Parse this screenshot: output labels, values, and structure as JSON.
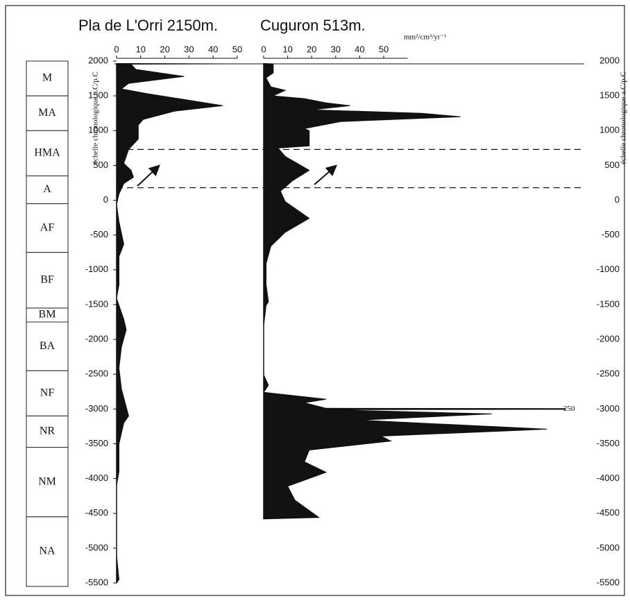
{
  "chart_data": {
    "type": "area-profile",
    "y_label": "échelle chronologique a.C/p.C",
    "unit": "mm²/cm³/yr⁻¹",
    "ylim": [
      2000,
      -5500
    ],
    "yticks": [
      2000,
      1500,
      1000,
      500,
      0,
      -500,
      -1000,
      -1500,
      -2000,
      -2500,
      -3000,
      -3500,
      -4000,
      -4500,
      -5000,
      -5500
    ],
    "dashed_lines": [
      730,
      180
    ],
    "periods": [
      {
        "label": "M",
        "start": 2000,
        "end": 1500
      },
      {
        "label": "MA",
        "start": 1500,
        "end": 1000
      },
      {
        "label": "HMA",
        "start": 1000,
        "end": 350
      },
      {
        "label": "A",
        "start": 350,
        "end": -50
      },
      {
        "label": "AF",
        "start": -50,
        "end": -750
      },
      {
        "label": "BF",
        "start": -750,
        "end": -1550
      },
      {
        "label": "BM",
        "start": -1550,
        "end": -1750
      },
      {
        "label": "BA",
        "start": -1750,
        "end": -2450
      },
      {
        "label": "NF",
        "start": -2450,
        "end": -3100
      },
      {
        "label": "NR",
        "start": -3100,
        "end": -3550
      },
      {
        "label": "NM",
        "start": -3550,
        "end": -4550
      },
      {
        "label": "NA",
        "start": -4550,
        "end": -5550
      }
    ],
    "series": [
      {
        "name": "Pla de L'Orri 2150m.",
        "color": "#111111",
        "xlim": [
          0,
          50
        ],
        "xticks": [
          0,
          10,
          20,
          30,
          40,
          50
        ],
        "y": [
          1965,
          1960,
          1955,
          1880,
          1780,
          1680,
          1600,
          1530,
          1360,
          1280,
          1160,
          1080,
          880,
          730,
          530,
          430,
          330,
          240,
          90,
          -60,
          -310,
          -630,
          -810,
          -1010,
          -1210,
          -1410,
          -1710,
          -1860,
          -2110,
          -2410,
          -2710,
          -3100,
          -3200,
          -3500,
          -3900,
          -4100,
          -4700,
          -5100,
          -5450,
          -5500
        ],
        "values": [
          0,
          46,
          6,
          8,
          28,
          5,
          2,
          13,
          44,
          24,
          11,
          9,
          9,
          5,
          3,
          6,
          7,
          3,
          1,
          0,
          1,
          3,
          1,
          1,
          1,
          0,
          3,
          4,
          2,
          1,
          2,
          5,
          3,
          1,
          1,
          0,
          0,
          0,
          1,
          0
        ]
      },
      {
        "name": "Cuguron 513m.",
        "color": "#111111",
        "xlim": [
          0,
          60
        ],
        "xticks": [
          0,
          10,
          20,
          30,
          40,
          50
        ],
        "y": [
          1965,
          1960,
          1830,
          1760,
          1630,
          1580,
          1500,
          1460,
          1400,
          1360,
          1300,
          1250,
          1200,
          1130,
          1030,
          1000,
          780,
          750,
          630,
          430,
          280,
          130,
          -20,
          -260,
          -460,
          -660,
          -910,
          -1210,
          -1460,
          -1510,
          -1810,
          -2510,
          -2660,
          -2760,
          -2860,
          -2910,
          -2990,
          -3000,
          -3010,
          -3070,
          -3160,
          -3290,
          -3390,
          -3460,
          -3590,
          -3760,
          -3910,
          -4110,
          -4310,
          -4560,
          -4580
        ],
        "values": [
          0,
          4,
          4,
          1,
          3,
          9,
          4,
          17,
          26,
          36,
          20,
          66,
          82,
          32,
          17,
          19,
          19,
          6,
          9,
          19,
          12,
          7,
          9,
          19,
          9,
          3,
          1,
          1,
          2,
          1,
          0,
          0,
          2,
          0,
          26,
          17,
          26,
          250,
          26,
          95,
          40,
          118,
          49,
          53,
          19,
          17,
          26,
          10,
          13,
          23,
          0
        ]
      }
    ]
  }
}
